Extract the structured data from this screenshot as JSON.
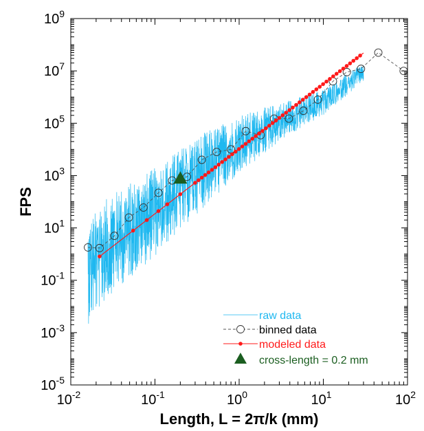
{
  "chart_data": {
    "type": "line",
    "xlabel": "Length, L = 2π/k (mm)",
    "ylabel": "FPS",
    "xscale": "log",
    "yscale": "log",
    "xlim": [
      0.01,
      100
    ],
    "ylim": [
      1e-05,
      1000000000
    ],
    "x_ticks": [
      {
        "value": 0.01,
        "base": "10",
        "exp": "-2"
      },
      {
        "value": 0.1,
        "base": "10",
        "exp": "-1"
      },
      {
        "value": 1,
        "base": "10",
        "exp": "0"
      },
      {
        "value": 10,
        "base": "10",
        "exp": "1"
      },
      {
        "value": 100,
        "base": "10",
        "exp": "2"
      }
    ],
    "y_ticks": [
      {
        "value": 1e-05,
        "base": "10",
        "exp": "-5"
      },
      {
        "value": 0.001,
        "base": "10",
        "exp": "-3"
      },
      {
        "value": 0.1,
        "base": "10",
        "exp": "-1"
      },
      {
        "value": 10,
        "base": "10",
        "exp": "1"
      },
      {
        "value": 1000,
        "base": "10",
        "exp": "3"
      },
      {
        "value": 100000,
        "base": "10",
        "exp": "5"
      },
      {
        "value": 10000000,
        "base": "10",
        "exp": "7"
      },
      {
        "value": 1000000000,
        "base": "10",
        "exp": "9"
      }
    ],
    "grid": false,
    "legend_position": "bottom-right",
    "series": [
      {
        "name": "raw data",
        "style": "thin line",
        "color": "#1fb8f0",
        "x_range": [
          0.016,
          30
        ],
        "y_band_low": [
          [
            0.016,
            0.002
          ],
          [
            0.03,
            0.03
          ],
          [
            0.1,
            0.8
          ],
          [
            0.3,
            30
          ],
          [
            1,
            1000
          ],
          [
            3,
            20000
          ],
          [
            10,
            200000
          ],
          [
            30,
            4000000
          ]
        ],
        "y_band_high": [
          [
            0.016,
            20
          ],
          [
            0.03,
            200
          ],
          [
            0.1,
            2000
          ],
          [
            0.3,
            30000
          ],
          [
            1,
            200000
          ],
          [
            3,
            600000
          ],
          [
            10,
            2000000
          ],
          [
            30,
            20000000
          ]
        ]
      },
      {
        "name": "binned data",
        "style": "dashed line, open circle markers",
        "color": "#000000",
        "x": [
          0.016,
          0.022,
          0.033,
          0.049,
          0.073,
          0.11,
          0.16,
          0.24,
          0.36,
          0.54,
          0.8,
          1.2,
          1.8,
          2.6,
          3.9,
          5.8,
          8.6,
          13,
          19,
          28,
          45,
          90
        ],
        "y": [
          1.8,
          1.7,
          5,
          25,
          60,
          220,
          650,
          900,
          4000,
          8000,
          10000,
          50000,
          35000,
          150000,
          150000,
          300000,
          800000,
          4000000,
          9000000,
          12000000,
          50000000,
          10000000
        ]
      },
      {
        "name": "modeled data",
        "style": "line with dot markers",
        "color": "#ff1a1a",
        "power_law": {
          "coefficient": 10500,
          "exponent": 2.48
        },
        "x_range": [
          0.022,
          30
        ],
        "y_at_range": [
          0.78,
          46000000
        ]
      },
      {
        "name": "cross-length = 0.2 mm",
        "style": "filled triangle marker",
        "color": "#1b5e20",
        "x": [
          0.2
        ],
        "y": [
          750
        ]
      }
    ],
    "legend": [
      {
        "label": "raw data",
        "color": "#1fb8f0",
        "label_color": "#1fb8f0"
      },
      {
        "label": "binned data",
        "color": "#000000",
        "label_color": "#000000"
      },
      {
        "label": "modeled data",
        "color": "#ff1a1a",
        "label_color": "#ff1a1a"
      },
      {
        "label": "cross-length = 0.2 mm",
        "color": "#1b5e20",
        "label_color": "#1b5e20"
      }
    ]
  }
}
